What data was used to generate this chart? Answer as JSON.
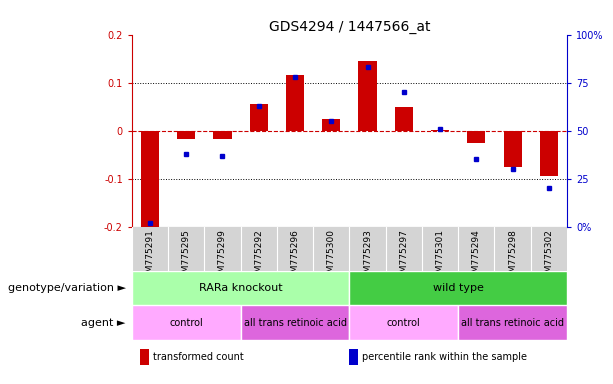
{
  "title": "GDS4294 / 1447566_at",
  "samples": [
    "GSM775291",
    "GSM775295",
    "GSM775299",
    "GSM775292",
    "GSM775296",
    "GSM775300",
    "GSM775293",
    "GSM775297",
    "GSM775301",
    "GSM775294",
    "GSM775298",
    "GSM775302"
  ],
  "bar_values": [
    -0.205,
    -0.018,
    -0.018,
    0.055,
    0.115,
    0.025,
    0.145,
    0.05,
    0.002,
    -0.025,
    -0.075,
    -0.095
  ],
  "dot_values": [
    2,
    38,
    37,
    63,
    78,
    55,
    83,
    70,
    51,
    35,
    30,
    20
  ],
  "ylim_left": [
    -0.2,
    0.2
  ],
  "ylim_right": [
    0,
    100
  ],
  "yticks_left": [
    -0.2,
    -0.1,
    0.0,
    0.1,
    0.2
  ],
  "yticks_right": [
    0,
    25,
    50,
    75,
    100
  ],
  "ytick_labels_left": [
    "-0.2",
    "-0.1",
    "0",
    "0.1",
    "0.2"
  ],
  "ytick_labels_right": [
    "0%",
    "25",
    "50",
    "75",
    "100%"
  ],
  "bar_color": "#cc0000",
  "dot_color": "#0000cc",
  "dashed_line_color": "#cc0000",
  "grid_color": "#000000",
  "sample_bg_color": "#d4d4d4",
  "genotype_groups": [
    {
      "label": "RARa knockout",
      "start": 0,
      "end": 6,
      "color": "#aaffaa"
    },
    {
      "label": "wild type",
      "start": 6,
      "end": 12,
      "color": "#44cc44"
    }
  ],
  "agent_groups": [
    {
      "label": "control",
      "start": 0,
      "end": 3,
      "color": "#ffaaff"
    },
    {
      "label": "all trans retinoic acid",
      "start": 3,
      "end": 6,
      "color": "#dd66dd"
    },
    {
      "label": "control",
      "start": 6,
      "end": 9,
      "color": "#ffaaff"
    },
    {
      "label": "all trans retinoic acid",
      "start": 9,
      "end": 12,
      "color": "#dd66dd"
    }
  ],
  "legend_items": [
    {
      "label": "transformed count",
      "color": "#cc0000"
    },
    {
      "label": "percentile rank within the sample",
      "color": "#0000cc"
    }
  ],
  "background_color": "#ffffff",
  "title_fontsize": 10,
  "tick_fontsize": 7,
  "label_fontsize": 8,
  "sample_fontsize": 6.5
}
